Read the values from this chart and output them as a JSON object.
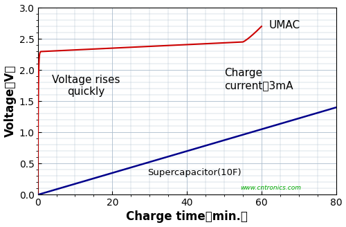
{
  "title": "",
  "xlabel": "Charge time（min.）",
  "ylabel": "Voltage（V）",
  "xlim": [
    0,
    80
  ],
  "ylim": [
    0,
    3
  ],
  "xticks": [
    0,
    20,
    40,
    60,
    80
  ],
  "yticks": [
    0,
    0.5,
    1.0,
    1.5,
    2.0,
    2.5,
    3.0
  ],
  "background_color": "#ffffff",
  "plot_bg_color": "#ffffff",
  "grid_color": "#aabccc",
  "umac_color": "#cc0000",
  "super_color": "#00008b",
  "annotation_voltage_rises": "Voltage rises\nquickly",
  "annotation_charge_current": "Charge\ncurrent：3mA",
  "annotation_umac": "UMAC",
  "annotation_super": "Supercapacitor(10F)",
  "xlabel_fontsize": 12,
  "ylabel_fontsize": 12,
  "tick_fontsize": 10,
  "annotation_fontsize": 11,
  "watermark": "www.cntronics.com",
  "watermark_color": "#00aa00"
}
